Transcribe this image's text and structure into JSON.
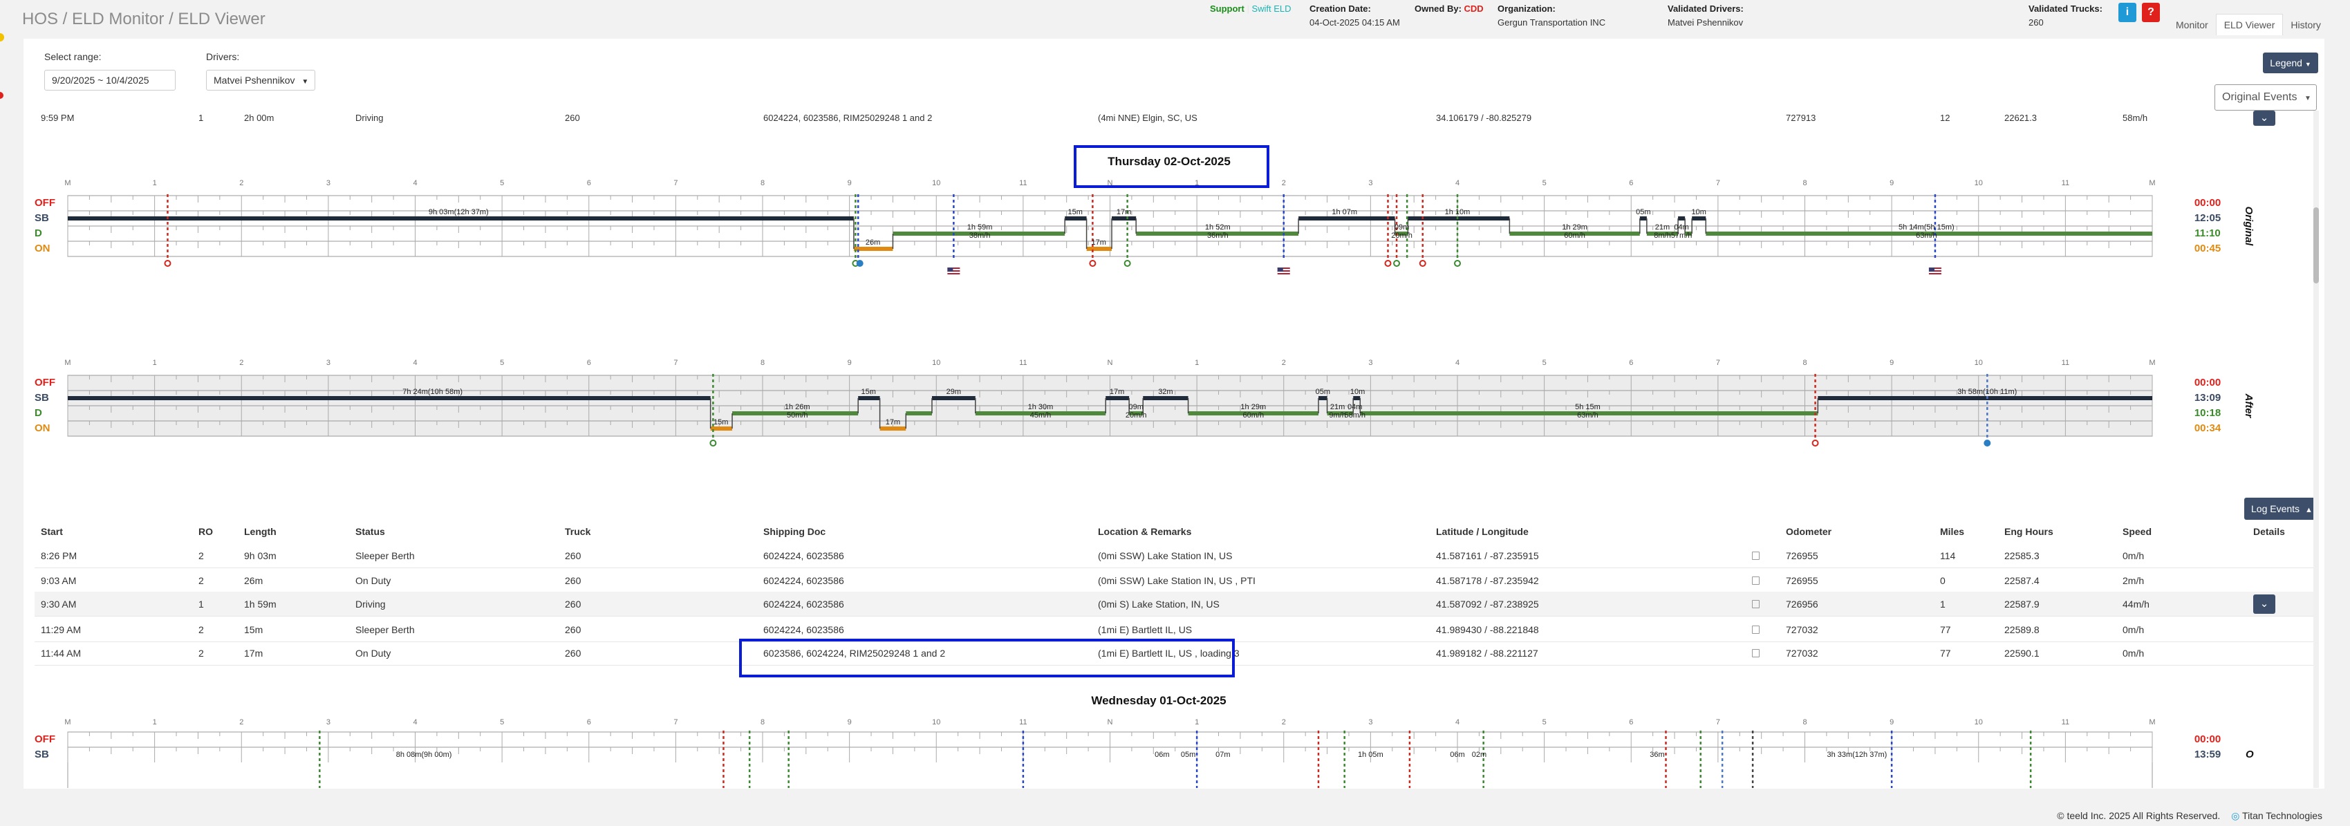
{
  "header": {
    "title": "HOS / ELD Monitor / ELD Viewer",
    "support": "Support",
    "swift": "Swift ELD",
    "creation_date_label": "Creation Date:",
    "creation_date_value": "04-Oct-2025 04:15 AM",
    "owned_by_label": "Owned By:",
    "owned_by_value": "CDD",
    "organization_label": "Organization:",
    "organization_value": "Gergun Transportation INC",
    "validated_drivers_label": "Validated Drivers:",
    "validated_drivers_value": "Matvei Pshennikov",
    "validated_trucks_label": "Validated Trucks:",
    "validated_trucks_value": "260",
    "info_btn": "i",
    "help_btn": "?",
    "nav": [
      "Monitor",
      "ELD Viewer",
      "History"
    ]
  },
  "filters": {
    "range_label": "Select range:",
    "range_value": "9/20/2025 ~ 10/4/2025",
    "drivers_label": "Drivers:",
    "drivers_value": "Matvei Pshennikov"
  },
  "controls": {
    "legend": "Legend",
    "original_events": "Original Events",
    "log_events": "Log Events"
  },
  "clipped_row": [
    "9:59 PM",
    "1",
    "2h 00m",
    "Driving",
    "260",
    "6024224, 6023586, RIM25029248 1 and 2",
    "(4mi NNE) Elgin, SC, US",
    "34.106179 / -80.825279",
    "727913",
    "12",
    "22621.3",
    "58m/h"
  ],
  "days": [
    {
      "title": "Thursday 02-Oct-2025"
    },
    {
      "title": "Wednesday 01-Oct-2025"
    }
  ],
  "hours": [
    "M",
    "1",
    "2",
    "3",
    "4",
    "5",
    "6",
    "7",
    "8",
    "9",
    "10",
    "11",
    "N",
    "1",
    "2",
    "3",
    "4",
    "5",
    "6",
    "7",
    "8",
    "9",
    "10",
    "11",
    "M"
  ],
  "status_labels": [
    "OFF",
    "SB",
    "D",
    "ON"
  ],
  "status_colors": {
    "OFF": "#e0211b",
    "SB": "#3b4b63",
    "D": "#3b8a2a",
    "ON": "#e08a12"
  },
  "line_colors": {
    "sb": "#1f2a3a",
    "drive": "#4f8a3c",
    "on": "#e08a12",
    "red": "#d6261c",
    "blue": "#2747d0",
    "green": "#3a8a30"
  },
  "original": {
    "side_label": "Original",
    "totals": [
      "00:00",
      "12:05",
      "11:10",
      "00:45"
    ],
    "segment_labels": [
      "9h 03m(12h 37m)",
      "26m",
      "1h 59m",
      "38m/h",
      "15m",
      "17m",
      "17m",
      "1h 52m",
      "36m/h",
      "1h 07m",
      "09m",
      "20m/h",
      "1h 10m",
      "1h 29m",
      "60m/h",
      "05m",
      "21m",
      "04m",
      "8m/h",
      "57m/h",
      "10m",
      "5h 14m(5h 15m)",
      "63m/h"
    ]
  },
  "after": {
    "side_label": "After",
    "totals": [
      "00:00",
      "13:09",
      "10:18",
      "00:34"
    ],
    "segment_labels": [
      "7h 24m(10h 58m)",
      "15m",
      "1h 26m",
      "50m/h",
      "15m",
      "29m",
      "17m",
      "1h 30m",
      "45m/h",
      "17m",
      "09m",
      "20m/h",
      "32m",
      "1h 29m",
      "60m/h",
      "05m",
      "21m",
      "04m",
      "9m/h",
      "58m/h",
      "10m",
      "5h 15m",
      "63m/h",
      "3h 58m(10h 11m)"
    ]
  },
  "wednesday": {
    "totals": [
      "00:00",
      "13:59"
    ],
    "segment_labels": [
      "8h 08m(9h 00m)",
      "06m",
      "05m",
      "07m",
      "1h 05m",
      "06m",
      "02m",
      "36m",
      "3h 33m(12h 37m)"
    ]
  },
  "table": {
    "headers": [
      "Start",
      "RO",
      "Length",
      "Status",
      "Truck",
      "Shipping Doc",
      "Location & Remarks",
      "Latitude / Longitude",
      "Odometer",
      "Miles",
      "Eng Hours",
      "Speed",
      "Details"
    ],
    "rows": [
      [
        "8:26 PM",
        "2",
        "9h 03m",
        "Sleeper Berth",
        "260",
        "6024224, 6023586",
        "(0mi SSW) Lake Station IN, US",
        "41.587161 / -87.235915",
        "726955",
        "114",
        "22585.3",
        "0m/h"
      ],
      [
        "9:03 AM",
        "2",
        "26m",
        "On Duty",
        "260",
        "6024224, 6023586",
        "(0mi SSW) Lake Station IN, US , PTI",
        "41.587178 / -87.235942",
        "726955",
        "0",
        "22587.4",
        "2m/h"
      ],
      [
        "9:30 AM",
        "1",
        "1h 59m",
        "Driving",
        "260",
        "6024224, 6023586",
        "(0mi S) Lake Station, IN, US",
        "41.587092 / -87.238925",
        "726956",
        "1",
        "22587.9",
        "44m/h"
      ],
      [
        "11:29 AM",
        "2",
        "15m",
        "Sleeper Berth",
        "260",
        "6024224, 6023586",
        "(1mi E) Bartlett IL, US",
        "41.989430 / -88.221848",
        "727032",
        "77",
        "22589.8",
        "0m/h"
      ],
      [
        "11:44 AM",
        "2",
        "17m",
        "On Duty",
        "260",
        "6023586, 6024224, RIM25029248 1 and 2",
        "(1mi E) Bartlett IL, US , loading 3",
        "41.989182 / -88.221127",
        "727032",
        "77",
        "22590.1",
        "0m/h"
      ]
    ]
  },
  "footer": {
    "copyright": "© teeld Inc. 2025 All Rights Reserved.",
    "brand": "Titan Technologies"
  }
}
